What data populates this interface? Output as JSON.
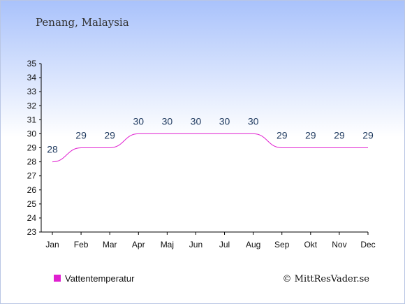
{
  "chart_data": {
    "type": "line",
    "title": "Penang, Malaysia",
    "categories": [
      "Jan",
      "Feb",
      "Mar",
      "Apr",
      "Maj",
      "Jun",
      "Jul",
      "Aug",
      "Sep",
      "Okt",
      "Nov",
      "Dec"
    ],
    "series": [
      {
        "name": "Vattentemperatur",
        "values": [
          28,
          29,
          29,
          30,
          30,
          30,
          30,
          30,
          29,
          29,
          29,
          29
        ],
        "color": "#e020d0"
      }
    ],
    "ylim": [
      23,
      35
    ],
    "yticks": [
      23,
      24,
      25,
      26,
      27,
      28,
      29,
      30,
      31,
      32,
      33,
      34,
      35
    ],
    "grid": false,
    "legend_position": "bottom-left",
    "text_color": "#1f3a5f"
  },
  "credit": "© MittResVader.se"
}
